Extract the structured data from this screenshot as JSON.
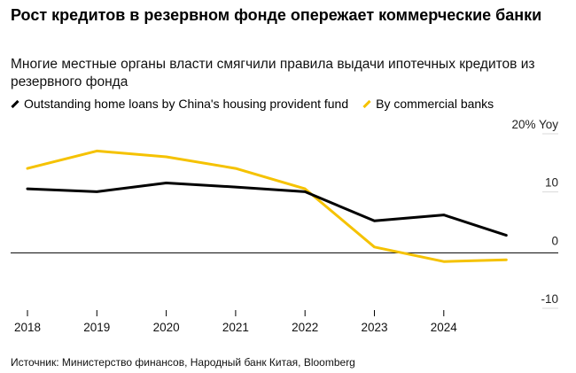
{
  "title": "Рост кредитов в резервном фонде опережает коммерческие банки",
  "subtitle": "Многие местные органы власти смягчили правила выдачи ипотечных кредитов из резервного фонда",
  "source": "Источник: Министерство финансов, Народный банк Китая, Bloomberg",
  "colors": {
    "provident": "#000000",
    "commercial": "#f5c200",
    "zero_line": "#000000",
    "grid": "#d9d9d9"
  },
  "chart_data": {
    "type": "line",
    "x": [
      2018,
      2019,
      2020,
      2021,
      2022,
      2023,
      2024,
      2025
    ],
    "x_ticks": [
      "2018",
      "2019",
      "2020",
      "2021",
      "2022",
      "2023",
      "2024"
    ],
    "y_ticks": [
      {
        "value": 20,
        "label": "20% Yoy"
      },
      {
        "value": 10,
        "label": "10"
      },
      {
        "value": 0,
        "label": "0"
      },
      {
        "value": -10,
        "label": "-10"
      }
    ],
    "ylim": [
      -10,
      20
    ],
    "grid": false,
    "legend_position": "top-left",
    "series": [
      {
        "name": "Outstanding home loans by China's housing provident fund",
        "values": [
          11.0,
          10.5,
          12.0,
          11.3,
          10.5,
          5.5,
          6.5,
          3.0
        ]
      },
      {
        "name": "By commercial banks",
        "values": [
          14.5,
          17.5,
          16.5,
          14.5,
          11.0,
          1.0,
          -1.5,
          -1.2
        ]
      }
    ]
  }
}
